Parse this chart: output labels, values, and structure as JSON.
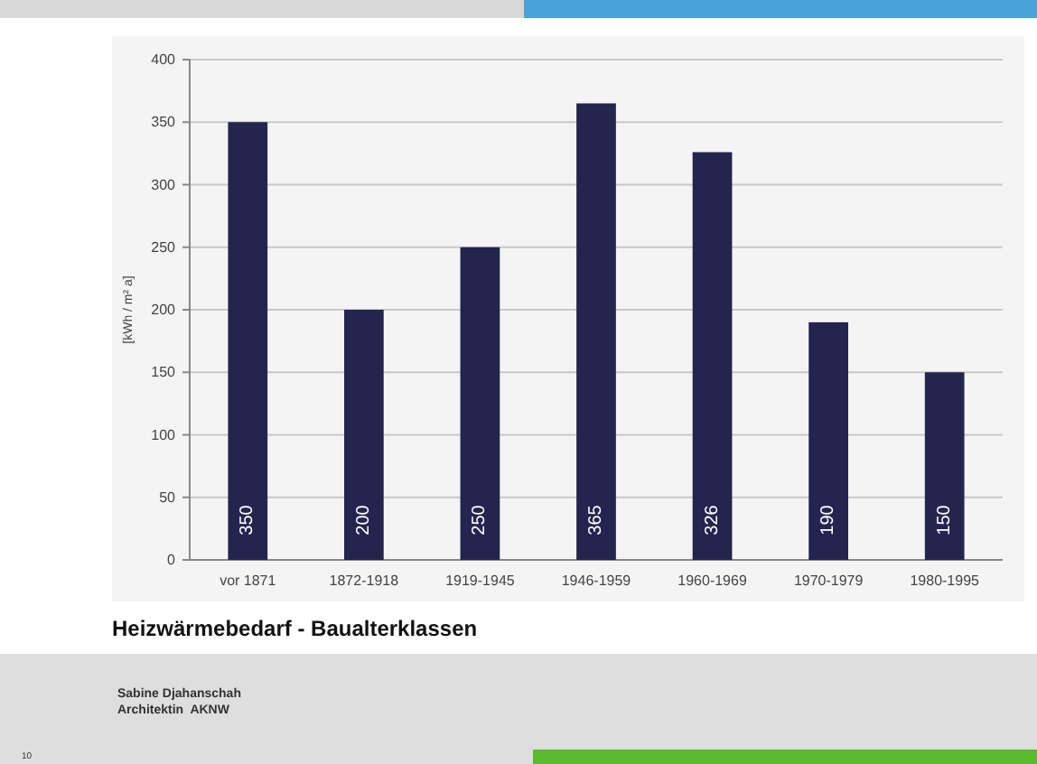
{
  "chart_data": {
    "type": "bar",
    "title": "Heizwärmebedarf - Baualterklassen",
    "ylabel": "[kWh / m² a]",
    "categories": [
      "vor 1871",
      "1872-1918",
      "1919-1945",
      "1946-1959",
      "1960-1969",
      "1970-1979",
      "1980-1995"
    ],
    "values": [
      350,
      200,
      250,
      365,
      326,
      190,
      150
    ],
    "color": "#24244f",
    "data_labels": true,
    "ylim": [
      0,
      400
    ],
    "yticks": [
      0,
      50,
      100,
      150,
      200,
      250,
      300,
      350,
      400
    ],
    "grid": "y",
    "annotations": [
      "Sabine Djahanschah",
      "Architektin  AKNW",
      "10"
    ]
  }
}
